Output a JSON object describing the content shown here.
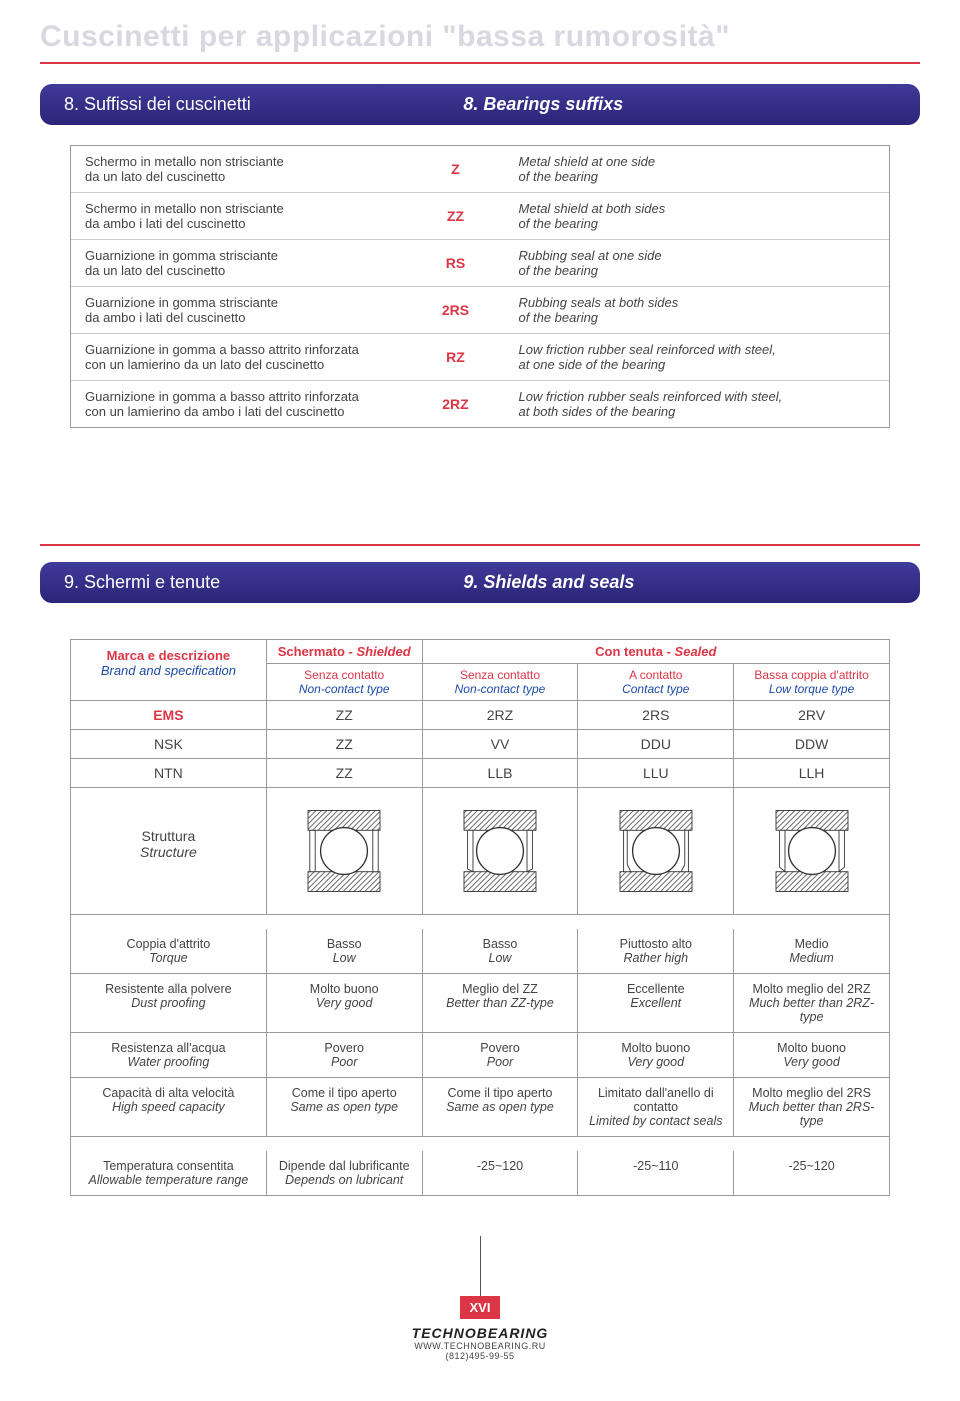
{
  "colors": {
    "accent_red": "#dc3545",
    "header_bar": "#2c2478",
    "blue_text": "#1e4ba8",
    "border": "#999999",
    "title_grey": "#d8d8e0",
    "text": "#444444"
  },
  "page_title": "Cuscinetti per applicazioni \"bassa rumorosità\"",
  "section8": {
    "left": "8. Suffissi dei cuscinetti",
    "right": "8. Bearings suffixs"
  },
  "suffixes": [
    {
      "it": "Schermo in metallo non strisciante\nda un lato del cuscinetto",
      "code": "Z",
      "en": "Metal shield at one side\nof the bearing"
    },
    {
      "it": "Schermo in metallo non strisciante\nda ambo i lati del cuscinetto",
      "code": "ZZ",
      "en": "Metal shield at both sides\nof the bearing"
    },
    {
      "it": "Guarnizione in gomma strisciante\nda un lato del cuscinetto",
      "code": "RS",
      "en": "Rubbing seal at one side\nof the bearing"
    },
    {
      "it": "Guarnizione in gomma strisciante\nda ambo i lati del cuscinetto",
      "code": "2RS",
      "en": "Rubbing seals at both sides\nof the bearing"
    },
    {
      "it": "Guarnizione in gomma a basso attrito rinforzata\ncon un lamierino da un lato del cuscinetto",
      "code": "RZ",
      "en": "Low friction rubber seal reinforced with steel,\nat one side of the bearing"
    },
    {
      "it": "Guarnizione in gomma a basso attrito rinforzata\ncon un lamierino da ambo i lati del cuscinetto",
      "code": "2RZ",
      "en": "Low friction rubber seals reinforced with steel,\nat both sides of the bearing"
    }
  ],
  "section9": {
    "left": "9. Schermi e tenute",
    "right": "9. Shields and seals"
  },
  "spec": {
    "brand_label_it": "Marca e descrizione",
    "brand_label_en": "Brand and specification",
    "shielded_it": "Schermato - ",
    "shielded_en": "Shielded",
    "sealed_it": "Con tenuta - ",
    "sealed_en": "Sealed",
    "cols": [
      {
        "it": "Senza contatto",
        "en": "Non-contact type"
      },
      {
        "it": "Senza contatto",
        "en": "Non-contact type"
      },
      {
        "it": "A contatto",
        "en": "Contact type"
      },
      {
        "it": "Bassa coppia d'attrito",
        "en": "Low torque type"
      }
    ],
    "brands": [
      {
        "name": "EMS",
        "vals": [
          "ZZ",
          "2RZ",
          "2RS",
          "2RV"
        ]
      },
      {
        "name": "NSK",
        "vals": [
          "ZZ",
          "VV",
          "DDU",
          "DDW"
        ]
      },
      {
        "name": "NTN",
        "vals": [
          "ZZ",
          "LLB",
          "LLU",
          "LLH"
        ]
      }
    ],
    "struct_it": "Struttura",
    "struct_en": "Structure",
    "props": [
      {
        "it": "Coppia d'attrito",
        "en": "Torque",
        "cells": [
          {
            "it": "Basso",
            "en": "Low"
          },
          {
            "it": "Basso",
            "en": "Low"
          },
          {
            "it": "Piuttosto alto",
            "en": "Rather high"
          },
          {
            "it": "Medio",
            "en": "Medium"
          }
        ]
      },
      {
        "it": "Resistente alla polvere",
        "en": "Dust proofing",
        "cells": [
          {
            "it": "Molto buono",
            "en": "Very good"
          },
          {
            "it": "Meglio del ZZ",
            "en": "Better than ZZ-type"
          },
          {
            "it": "Eccellente",
            "en": "Excellent"
          },
          {
            "it": "Molto meglio del 2RZ",
            "en": "Much better than 2RZ-type"
          }
        ]
      },
      {
        "it": "Resistenza all'acqua",
        "en": "Water proofing",
        "cells": [
          {
            "it": "Povero",
            "en": "Poor"
          },
          {
            "it": "Povero",
            "en": "Poor"
          },
          {
            "it": "Molto buono",
            "en": "Very good"
          },
          {
            "it": "Molto buono",
            "en": "Very good"
          }
        ]
      },
      {
        "it": "Capacità di alta velocità",
        "en": "High speed capacity",
        "cells": [
          {
            "it": "Come il tipo aperto",
            "en": "Same as open type"
          },
          {
            "it": "Come il tipo aperto",
            "en": "Same as open type"
          },
          {
            "it": "Limitato dall'anello di contatto",
            "en": "Limited by contact seals"
          },
          {
            "it": "Molto meglio del 2RS",
            "en": "Much better than 2RS-type"
          }
        ]
      },
      {
        "it": "Temperatura consentita",
        "en": "Allowable temperature range",
        "cells": [
          {
            "it": "Dipende dal lubrificante",
            "en": "Depends on lubricant"
          },
          {
            "it": "-25~120",
            "en": ""
          },
          {
            "it": "-25~110",
            "en": ""
          },
          {
            "it": "-25~120",
            "en": ""
          }
        ]
      }
    ]
  },
  "footer": {
    "page_number": "XVI",
    "brand": "TECHNOBEARING",
    "url": "WWW.TECHNOBEARING.RU",
    "phone": "(812)495-99-55"
  }
}
